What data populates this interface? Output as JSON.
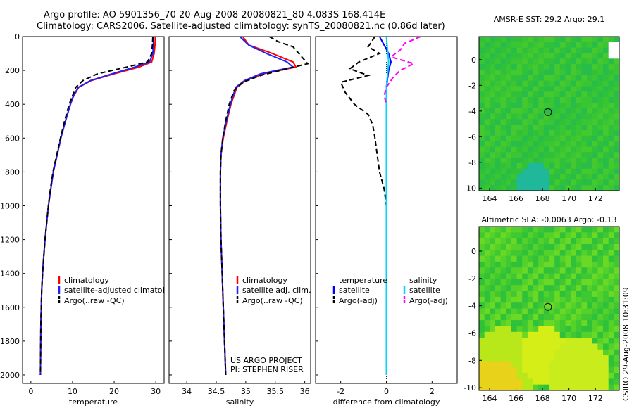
{
  "header": {
    "title_line1": "Argo profile: AO 5901356_70 20-Aug-2008 20080821_80 4.083S 168.414E",
    "title_line2": "Climatology: CARS2006. Satellite-adjusted climatology: synTS_20080821.nc (0.86d later)"
  },
  "footer": {
    "project": "US ARGO PROJECT",
    "pi": "PI: STEPHEN RISER",
    "credit": "CSIRO 29-Aug-2008 10:31:09"
  },
  "colors": {
    "climatology": "#ff0000",
    "satellite": "#1f1fff",
    "argo": "#000000",
    "temperature_diff_satellite": "#0000ff",
    "salinity_diff_satellite": "#00d5ff",
    "salinity_diff_argo": "#ff00ff",
    "map_base": "#33cc33",
    "marker": "#000000"
  },
  "chart_data": [
    {
      "type": "line",
      "xlabel": "temperature",
      "ylabel": "",
      "xlim": [
        -2,
        32
      ],
      "ylim": [
        2050,
        0
      ],
      "xticks": [
        0,
        10,
        20,
        30
      ],
      "yticks": [
        0,
        200,
        400,
        600,
        800,
        1000,
        1200,
        1400,
        1600,
        1800,
        2000
      ],
      "legend": [
        "climatology",
        "satellite-adjusted climatology",
        "Argo(..raw -QC)"
      ],
      "legend_placement": "lower-right",
      "series": [
        {
          "name": "climatology",
          "style": "solid",
          "x": [
            29.9,
            29.8,
            29.6,
            29.0,
            26.0,
            20.0,
            14.5,
            11.5,
            10.3,
            9.5,
            8.3,
            7.2,
            6.3,
            5.4,
            4.8,
            4.2,
            3.8,
            3.4,
            3.1,
            2.8,
            2.6,
            2.4,
            2.3
          ],
          "y": [
            0,
            50,
            100,
            150,
            180,
            220,
            260,
            300,
            350,
            400,
            500,
            600,
            700,
            800,
            900,
            1000,
            1100,
            1200,
            1300,
            1400,
            1500,
            1700,
            2000
          ]
        },
        {
          "name": "satellite-adjusted climatology",
          "style": "solid",
          "x": [
            29.5,
            29.4,
            29.3,
            28.5,
            25.0,
            19.5,
            14.3,
            11.4,
            10.2,
            9.5,
            8.3,
            7.2,
            6.3,
            5.4,
            4.8,
            4.2,
            3.8,
            3.4,
            3.1,
            2.8,
            2.6,
            2.4,
            2.3
          ],
          "y": [
            0,
            50,
            100,
            150,
            180,
            220,
            260,
            300,
            350,
            400,
            500,
            600,
            700,
            800,
            900,
            1000,
            1100,
            1200,
            1300,
            1400,
            1500,
            1700,
            2000
          ]
        },
        {
          "name": "Argo(..raw -QC)",
          "style": "dashed",
          "x": [
            29.3,
            29.2,
            29.0,
            28.0,
            23.0,
            16.0,
            12.5,
            10.8,
            10.0,
            9.2,
            8.1,
            7.1,
            6.2,
            5.3,
            4.7,
            4.2,
            3.8,
            3.4,
            3.1,
            2.8,
            2.6,
            2.4,
            2.3
          ],
          "y": [
            0,
            50,
            100,
            150,
            180,
            220,
            260,
            300,
            350,
            400,
            500,
            600,
            700,
            800,
            900,
            1000,
            1100,
            1200,
            1300,
            1400,
            1500,
            1700,
            2000
          ]
        }
      ]
    },
    {
      "type": "line",
      "xlabel": "salinity",
      "ylabel": "",
      "xlim": [
        33.7,
        36.1
      ],
      "ylim": [
        2050,
        0
      ],
      "xticks": [
        34,
        34.5,
        35,
        35.5,
        36
      ],
      "legend": [
        "climatology",
        "satellite adj. clim.",
        "Argo(..raw -QC)"
      ],
      "legend_placement": "lower-right",
      "series": [
        {
          "name": "climatology",
          "style": "solid",
          "x": [
            34.95,
            35.05,
            35.45,
            35.8,
            35.85,
            35.3,
            35.0,
            34.85,
            34.75,
            34.68,
            34.62,
            34.58,
            34.57,
            34.57,
            34.58,
            34.6,
            34.62,
            34.64,
            34.66
          ],
          "y": [
            0,
            50,
            100,
            150,
            180,
            220,
            260,
            300,
            400,
            500,
            600,
            700,
            800,
            1000,
            1200,
            1400,
            1600,
            1800,
            2000
          ]
        },
        {
          "name": "satellite adj. clim.",
          "style": "solid",
          "x": [
            34.9,
            35.05,
            35.35,
            35.7,
            35.8,
            35.25,
            34.98,
            34.83,
            34.74,
            34.67,
            34.61,
            34.58,
            34.57,
            34.57,
            34.58,
            34.6,
            34.62,
            34.64,
            34.66
          ],
          "y": [
            0,
            50,
            100,
            150,
            180,
            220,
            260,
            300,
            400,
            500,
            600,
            700,
            800,
            1000,
            1200,
            1400,
            1600,
            1800,
            2000
          ]
        },
        {
          "name": "Argo(..raw -QC)",
          "style": "dashed",
          "x": [
            35.4,
            35.55,
            35.8,
            35.85,
            35.95,
            36.05,
            35.7,
            35.25,
            34.95,
            34.8,
            34.72,
            34.66,
            34.61,
            34.58,
            34.57,
            34.57,
            34.58,
            34.6,
            34.62,
            34.64,
            34.66
          ],
          "y": [
            0,
            30,
            60,
            80,
            120,
            160,
            190,
            230,
            270,
            320,
            400,
            500,
            600,
            700,
            800,
            1000,
            1200,
            1400,
            1600,
            1800,
            2000
          ]
        }
      ]
    },
    {
      "type": "line",
      "xlabel": "difference from climatology",
      "ylabel": "",
      "xlim": [
        -3.1,
        3.1
      ],
      "ylim": [
        2050,
        0
      ],
      "xticks": [
        -2,
        0,
        2
      ],
      "legend": [
        "temperature",
        "satellite",
        "Argo(-adj)",
        "salinity",
        "satellite",
        "Argo(-adj)"
      ],
      "legend_placement": "lower-center",
      "series": [
        {
          "name": "temperature satellite",
          "style": "solid",
          "x": [
            -0.3,
            -0.1,
            0.1,
            0.2,
            0.1,
            0.0,
            0.0,
            0.0,
            0.0,
            0.0
          ],
          "y": [
            0,
            50,
            100,
            150,
            200,
            300,
            500,
            1000,
            1500,
            2000
          ]
        },
        {
          "name": "temperature Argo(-adj)",
          "style": "dashed",
          "x": [
            -0.5,
            -0.8,
            -0.3,
            -1.2,
            -1.6,
            -0.8,
            -2.0,
            -1.8,
            -1.4,
            -0.8,
            -0.6,
            -0.5,
            -0.4,
            -0.3,
            -0.1,
            0.0,
            0.0
          ],
          "y": [
            0,
            60,
            100,
            150,
            190,
            230,
            270,
            330,
            400,
            460,
            520,
            600,
            700,
            800,
            900,
            1000,
            2000
          ]
        },
        {
          "name": "salinity satellite",
          "style": "solid",
          "x": [
            0.0,
            0.1,
            0.0,
            0.0,
            0.0,
            0.0
          ],
          "y": [
            0,
            150,
            300,
            500,
            1000,
            2000
          ]
        },
        {
          "name": "salinity Argo(-adj)",
          "style": "dashed",
          "x": [
            1.5,
            0.8,
            0.6,
            0.2,
            1.2,
            0.6,
            0.3,
            0.0,
            -0.1,
            0.0
          ],
          "y": [
            0,
            40,
            80,
            120,
            160,
            200,
            240,
            300,
            350,
            400
          ]
        }
      ]
    },
    {
      "type": "heatmap",
      "title": "AMSR-E SST: 29.2 Argo: 29.1",
      "xlim": [
        163.2,
        173.8
      ],
      "ylim": [
        -10.2,
        1.8
      ],
      "xticks": [
        164,
        166,
        168,
        170,
        172
      ],
      "yticks": [
        0,
        -2,
        -4,
        -6,
        -8,
        -10
      ],
      "marker": {
        "lon": 168.414,
        "lat": -4.083
      }
    },
    {
      "type": "heatmap",
      "title": "Altimetric SLA: -0.0063 Argo: -0.13",
      "xlim": [
        163.2,
        173.8
      ],
      "ylim": [
        -10.2,
        1.8
      ],
      "xticks": [
        164,
        166,
        168,
        170,
        172
      ],
      "yticks": [
        0,
        -2,
        -4,
        -6,
        -8,
        -10
      ],
      "marker": {
        "lon": 168.414,
        "lat": -4.083
      }
    }
  ]
}
